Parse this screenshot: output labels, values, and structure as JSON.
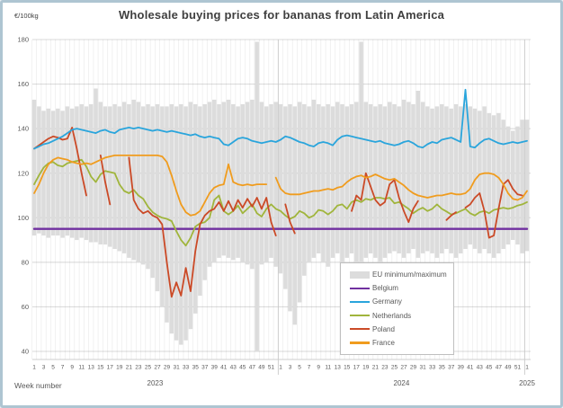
{
  "chart": {
    "title": "Wholesale buying prices for bananas from Latin America",
    "y_unit": "€/100kg",
    "x_axis_label": "Week number"
  },
  "chart_data": {
    "type": "line",
    "title": "Wholesale buying prices for bananas from Latin America",
    "ylabel": "€/100kg",
    "xlabel": "Week number",
    "grid": true,
    "legend_position": "inside-bottom-right",
    "y_axis": {
      "ticks": [
        180,
        160,
        140,
        120,
        100,
        80,
        60,
        40
      ],
      "ylim": [
        36,
        180
      ]
    },
    "x_axis": {
      "years": [
        {
          "label": "2023",
          "weeks": 52
        },
        {
          "label": "2024",
          "weeks": 52
        },
        {
          "label": "2025",
          "weeks": 1
        }
      ],
      "tick_labels": [
        "1",
        "3",
        "5",
        "7",
        "9",
        "11",
        "13",
        "15",
        "17",
        "19",
        "21",
        "23",
        "25",
        "27",
        "29",
        "31",
        "33",
        "35",
        "37",
        "39",
        "41",
        "43",
        "45",
        "47",
        "49",
        "51",
        "1",
        "3",
        "5",
        "7",
        "9",
        "11",
        "13",
        "15",
        "17",
        "19",
        "21",
        "23",
        "25",
        "27",
        "29",
        "31",
        "33",
        "35",
        "37",
        "39",
        "41",
        "43",
        "45",
        "47",
        "49",
        "51",
        "1"
      ]
    },
    "band": {
      "name": "EU minimum/maximum",
      "color": "#dcdcdc",
      "max": [
        153,
        150,
        148,
        149,
        148,
        149,
        148,
        150,
        149,
        150,
        151,
        150,
        151,
        158,
        152,
        150,
        150,
        151,
        150,
        152,
        151,
        153,
        152,
        150,
        151,
        150,
        151,
        150,
        150,
        151,
        150,
        151,
        150,
        152,
        151,
        150,
        151,
        152,
        153,
        151,
        152,
        153,
        151,
        150,
        151,
        152,
        153,
        179,
        152,
        150,
        151,
        152,
        151,
        150,
        151,
        150,
        152,
        151,
        150,
        153,
        151,
        150,
        151,
        150,
        152,
        151,
        150,
        151,
        152,
        179,
        152,
        151,
        150,
        151,
        150,
        152,
        151,
        150,
        153,
        152,
        151,
        157,
        152,
        150,
        149,
        150,
        151,
        150,
        149,
        151,
        150,
        151,
        150,
        149,
        148,
        150,
        147,
        146,
        147,
        144,
        141,
        139,
        141,
        144,
        144
      ],
      "min": [
        92,
        93,
        92,
        91,
        92,
        92,
        91,
        92,
        91,
        90,
        91,
        90,
        89,
        89,
        88,
        88,
        87,
        86,
        85,
        84,
        82,
        81,
        80,
        79,
        77,
        73,
        67,
        60,
        53,
        48,
        45,
        43,
        45,
        50,
        57,
        65,
        72,
        78,
        80,
        82,
        83,
        82,
        81,
        82,
        80,
        79,
        77,
        40,
        79,
        80,
        82,
        78,
        75,
        68,
        58,
        52,
        62,
        74,
        80,
        82,
        84,
        80,
        78,
        82,
        84,
        80,
        82,
        84,
        80,
        78,
        82,
        84,
        82,
        80,
        82,
        84,
        85,
        84,
        82,
        84,
        86,
        82,
        84,
        85,
        84,
        82,
        84,
        86,
        84,
        82,
        84,
        86,
        88,
        86,
        84,
        86,
        84,
        82,
        84,
        86,
        88,
        90,
        88,
        84,
        85
      ]
    },
    "series": [
      {
        "name": "Belgium",
        "color": "#7030a0",
        "constant": 95
      },
      {
        "name": "Germany",
        "color": "#2aa5dc",
        "values": [
          131,
          132,
          133,
          133.5,
          134.5,
          135.5,
          136.5,
          138,
          139.5,
          140,
          139.5,
          139,
          138.5,
          138,
          139,
          139.5,
          138.5,
          138,
          139.5,
          140,
          140.5,
          140,
          140.5,
          140,
          139.5,
          139,
          139.5,
          139,
          138.5,
          139,
          138.5,
          138,
          137.5,
          137,
          137.5,
          136.5,
          136,
          136.5,
          136,
          135.5,
          133,
          132.5,
          134,
          135.5,
          136,
          135.5,
          134.5,
          134,
          133.5,
          134,
          134.5,
          134,
          135,
          136.5,
          136,
          135,
          134,
          133.5,
          132.5,
          132,
          133.5,
          134,
          133.5,
          132.5,
          135,
          136.5,
          137,
          136.5,
          136,
          135.5,
          135,
          134.5,
          134,
          134.5,
          133.5,
          133,
          132.5,
          133,
          134,
          134.5,
          133.5,
          132,
          131.5,
          133,
          134,
          133.5,
          135,
          135.5,
          136,
          135,
          134,
          157.5,
          132,
          131.5,
          133.5,
          135,
          135.5,
          134.5,
          133.5,
          133,
          133.5,
          134,
          133.5,
          134,
          134.5
        ]
      },
      {
        "name": "Netherlands",
        "color": "#a0b53c",
        "values": [
          115,
          119,
          122.5,
          124.5,
          125,
          123.5,
          123,
          124.5,
          125,
          125.5,
          126,
          123,
          118.5,
          116,
          119.5,
          121,
          120.5,
          120,
          115,
          112,
          111,
          112.5,
          110,
          108.5,
          105,
          102.5,
          101,
          100,
          99.5,
          98.5,
          94,
          90,
          87.5,
          91,
          96,
          97.5,
          98,
          100,
          108,
          110,
          103,
          101.5,
          103,
          105.5,
          102,
          104,
          106,
          102,
          100.5,
          104,
          106,
          104,
          103,
          101,
          99.5,
          100.5,
          103,
          102,
          100,
          101,
          103.5,
          103,
          101.5,
          103,
          105.5,
          106,
          104,
          107,
          108,
          107,
          108.5,
          108,
          109,
          109,
          108.5,
          109,
          106.5,
          107,
          105.5,
          104,
          102,
          103.5,
          104.5,
          103,
          104,
          106,
          104,
          102.8,
          101.5,
          102,
          103,
          104,
          102,
          101,
          102.5,
          103,
          102,
          103.5,
          104,
          104.5,
          104,
          104.5,
          105.5,
          106,
          107
        ]
      },
      {
        "name": "Poland",
        "color": "#cb4a27",
        "values": [
          131,
          132.5,
          134,
          135.5,
          136.5,
          136,
          135,
          135.5,
          140.5,
          131,
          120,
          110,
          null,
          null,
          128,
          116,
          106,
          null,
          null,
          null,
          127,
          108,
          104,
          102,
          103,
          101,
          100,
          97,
          80,
          64.5,
          71,
          65,
          77.5,
          67,
          85,
          97,
          101,
          103,
          104,
          107,
          103,
          107.5,
          103,
          108,
          104.5,
          108.5,
          105,
          109,
          104,
          109,
          98,
          92,
          null,
          106,
          98,
          93,
          null,
          null,
          null,
          null,
          null,
          null,
          null,
          null,
          null,
          null,
          null,
          103,
          110,
          108,
          120,
          114,
          108,
          105.5,
          107,
          115,
          117,
          109,
          103,
          98,
          104,
          107.5,
          null,
          null,
          107,
          null,
          null,
          99,
          101,
          102.5,
          null,
          104.5,
          106,
          109,
          111,
          103,
          91,
          92,
          104,
          115,
          117,
          113,
          110.5,
          110,
          null
        ]
      },
      {
        "name": "France",
        "color": "#f09c1e",
        "values": [
          111,
          115,
          120,
          124,
          126,
          127,
          126.5,
          126,
          125,
          124.5,
          124,
          124.5,
          124,
          125,
          126,
          127,
          127.5,
          128,
          128,
          128,
          128,
          128,
          128,
          128,
          128,
          128,
          128,
          127.5,
          125,
          119,
          112,
          106,
          102.5,
          101,
          101.5,
          103,
          107,
          111,
          113.5,
          114.5,
          115,
          124,
          116,
          115,
          114.5,
          115,
          114.5,
          115,
          115,
          115,
          null,
          118,
          113,
          111,
          110.5,
          110.5,
          110.5,
          111,
          111.5,
          112,
          112,
          112.5,
          113,
          112.5,
          113.5,
          114,
          116,
          117.5,
          118.5,
          119,
          118,
          118.5,
          119.5,
          118.5,
          117.5,
          117,
          117.5,
          116,
          114.5,
          112.5,
          111,
          110,
          109.5,
          109,
          109.5,
          110,
          110,
          110.5,
          111,
          110.5,
          110.5,
          111,
          113,
          117,
          119.5,
          120,
          120,
          119.5,
          118,
          115,
          111,
          108.5,
          108,
          109,
          112
        ]
      }
    ],
    "legend_order": [
      "EU minimum/maximum",
      "Belgium",
      "Germany",
      "Netherlands",
      "Poland",
      "France"
    ]
  },
  "style": {
    "axis_text_color": "#595959",
    "grid_color": "#d8d8d8",
    "frame_border_color": "#aec5d2"
  }
}
